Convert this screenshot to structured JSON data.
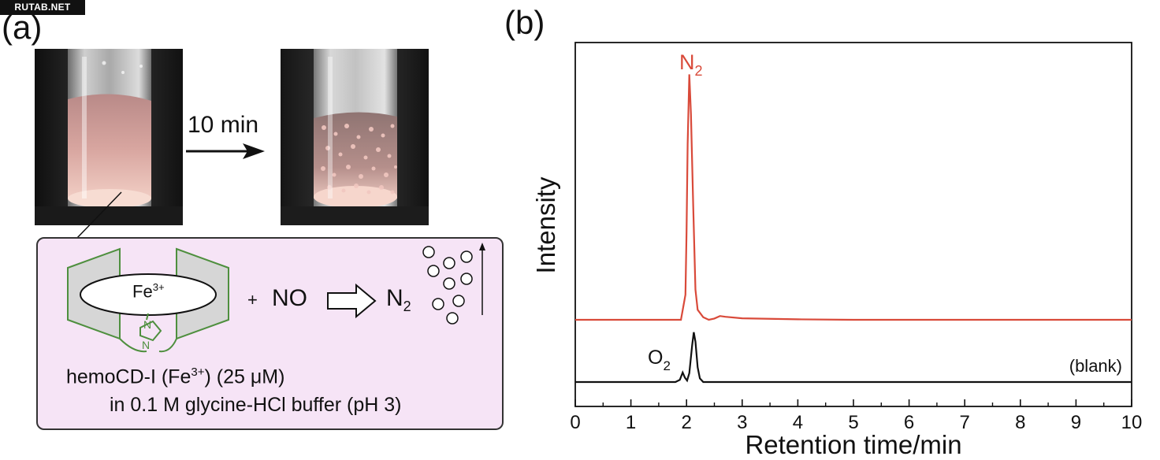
{
  "watermark": "RUTAB.NET",
  "panel_a": {
    "label": "(a)",
    "arrow_label": "10 min",
    "scheme": {
      "metal": "Fe",
      "metal_charge": "3+",
      "imidazole_atom": "N",
      "plus": "+",
      "reactant": "NO",
      "product": "N",
      "product_subscript": "2",
      "caption_line1_prefix": "hemoCD-I (Fe",
      "caption_line1_charge": "3+",
      "caption_line1_suffix": ") (25 μM)",
      "caption_line2": "in 0.1 M glycine-HCl buffer (pH 3)"
    },
    "colors": {
      "box_fill": "#f6e4f6",
      "cyclodextrin": "#4e8f3e",
      "liquid": "#e8b4ac"
    }
  },
  "panel_b": {
    "label": "(b)"
  },
  "chart_data": {
    "type": "line",
    "xlabel": "Retention time/min",
    "ylabel": "Intensity",
    "xlim": [
      0,
      10
    ],
    "xticks": [
      0,
      1,
      2,
      3,
      4,
      5,
      6,
      7,
      8,
      9,
      10
    ],
    "yticks_shown": false,
    "grid": false,
    "series": [
      {
        "annotation": "N",
        "annotation_subscript": "2",
        "color": "#d94a3a",
        "x": [
          0,
          1.9,
          1.98,
          2.0,
          2.02,
          2.05,
          2.08,
          2.12,
          2.16,
          2.2,
          2.3,
          2.4,
          2.5,
          2.6,
          2.7,
          3.0,
          4.0,
          5.0,
          10.0
        ],
        "y": [
          0.0,
          0.0,
          0.1,
          0.35,
          0.7,
          0.98,
          0.82,
          0.45,
          0.12,
          0.04,
          0.01,
          0.0,
          0.005,
          0.015,
          0.012,
          0.006,
          0.002,
          0.0,
          0.0
        ]
      },
      {
        "annotation": "O",
        "annotation_subscript": "2",
        "label": "(blank)",
        "color": "#111111",
        "x": [
          0,
          1.8,
          1.88,
          1.93,
          1.97,
          2.01,
          2.05,
          2.1,
          2.13,
          2.16,
          2.2,
          2.24,
          2.3,
          2.4,
          10.0
        ],
        "y": [
          0.0,
          0.0,
          0.03,
          0.13,
          0.06,
          0.02,
          0.12,
          0.5,
          0.68,
          0.55,
          0.2,
          0.05,
          0.0,
          0.0,
          0.0
        ]
      }
    ]
  }
}
